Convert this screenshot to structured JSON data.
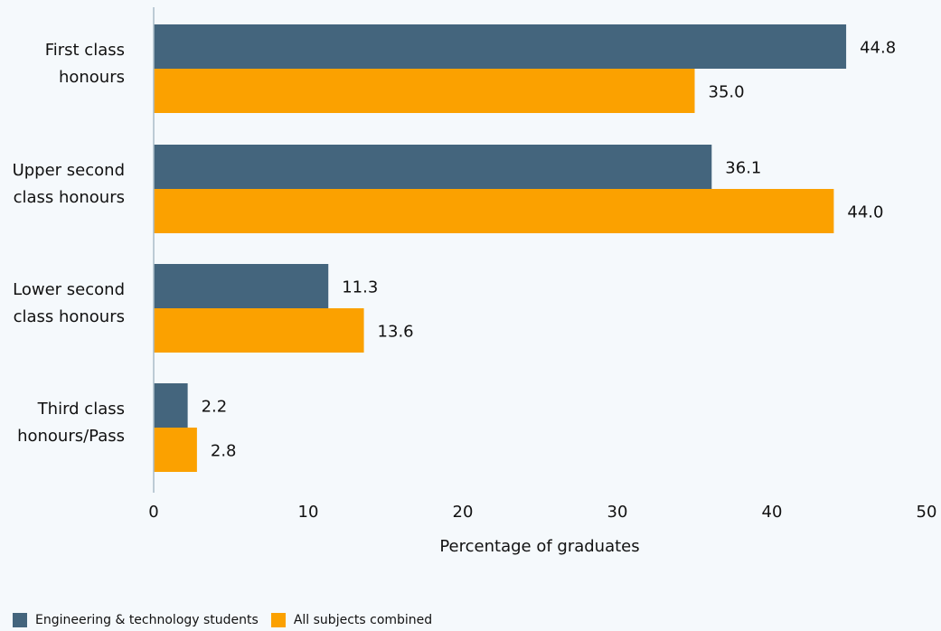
{
  "chart_data": {
    "type": "bar",
    "orientation": "horizontal",
    "categories": [
      [
        "First class",
        "honours"
      ],
      [
        "Upper second",
        "class honours"
      ],
      [
        "Lower second",
        "class honours"
      ],
      [
        "Third class",
        "honours/Pass"
      ]
    ],
    "series": [
      {
        "name": "Engineering & technology students",
        "color": "#44657d",
        "values": [
          44.8,
          36.1,
          11.3,
          2.2
        ]
      },
      {
        "name": "All subjects combined",
        "color": "#fba100",
        "values": [
          35.0,
          44.0,
          13.6,
          2.8
        ]
      }
    ],
    "value_labels": [
      [
        "44.8",
        "36.1",
        "11.3",
        "2.2"
      ],
      [
        "35.0",
        "44.0",
        "13.6",
        "2.8"
      ]
    ],
    "xlabel": "Percentage of graduates",
    "xlim": [
      0,
      50
    ],
    "xticks": [
      0,
      10,
      20,
      30,
      40,
      50
    ],
    "grid": false,
    "legend_position": "bottom-left"
  }
}
